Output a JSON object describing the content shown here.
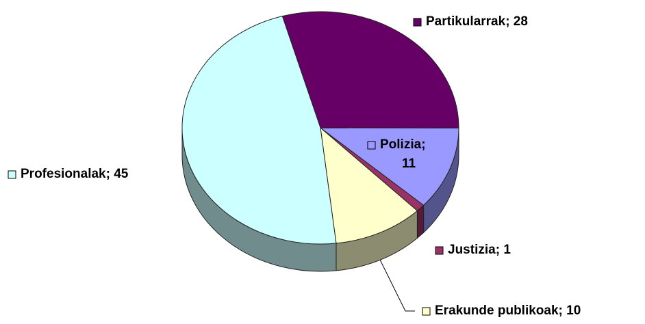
{
  "chart_data": {
    "type": "pie3d",
    "categories": [
      "Partikularrak",
      "Polizia",
      "Justizia",
      "Erakunde publikoak",
      "Profesionalak"
    ],
    "values": [
      28,
      11,
      1,
      10,
      45
    ],
    "colors": [
      "#660066",
      "#9999ff",
      "#993366",
      "#ffffcc",
      "#ccffff"
    ],
    "label_separator": ";"
  }
}
